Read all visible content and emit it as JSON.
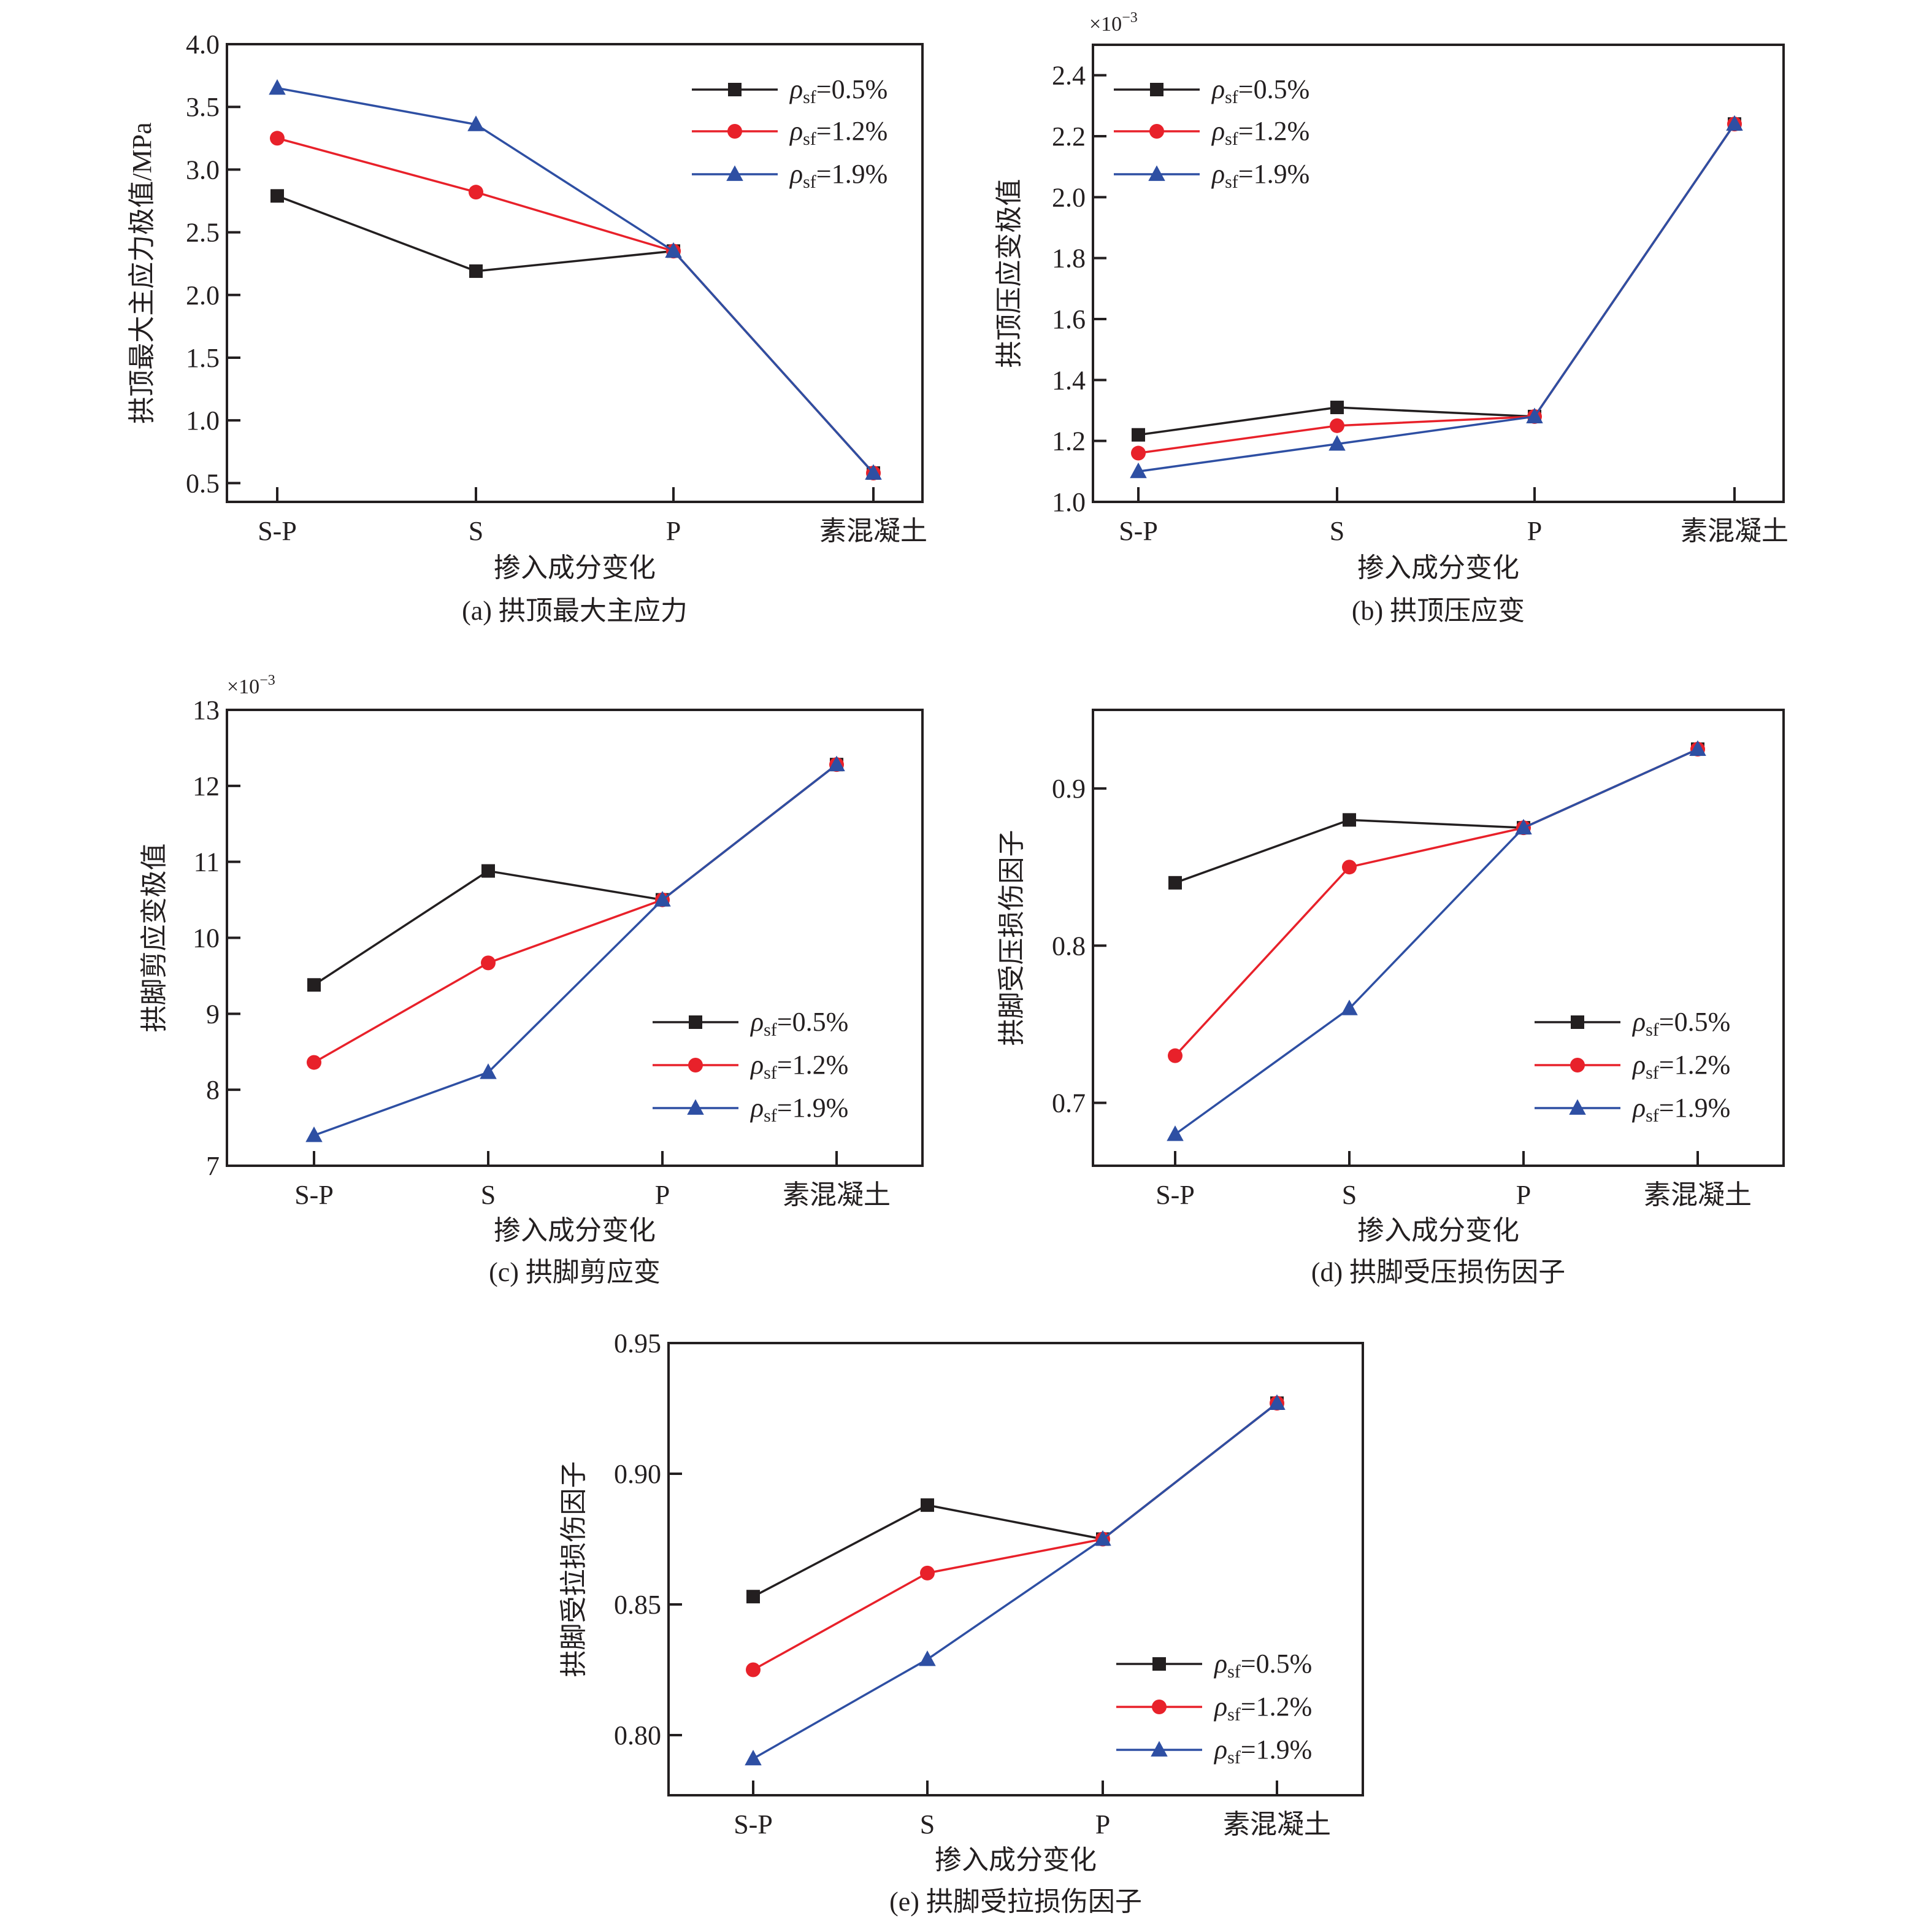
{
  "figure": {
    "series_style": [
      {
        "name": "ρsf=0.5%",
        "symbol": "ρ",
        "subscript": "sf",
        "suffix": "=0.5%",
        "color": "#231f20",
        "marker": "square"
      },
      {
        "name": "ρsf=1.2%",
        "symbol": "ρ",
        "subscript": "sf",
        "suffix": "=1.2%",
        "color": "#e8212a",
        "marker": "circle"
      },
      {
        "name": "ρsf=1.9%",
        "symbol": "ρ",
        "subscript": "sf",
        "suffix": "=1.9%",
        "color": "#2e4fa3",
        "marker": "triangle"
      }
    ]
  },
  "chart_data": [
    {
      "id": "a",
      "type": "line",
      "title": "(a) 拱顶最大主应力",
      "xlabel": "掺入成分变化",
      "ylabel": "拱顶最大主应力极值/MPa",
      "multiplier": "",
      "categories": [
        "S-P",
        "S",
        "P",
        "素混凝土"
      ],
      "ylim": [
        0.35,
        4.0
      ],
      "yticks": [
        0.5,
        1.0,
        1.5,
        2.0,
        2.5,
        3.0,
        3.5,
        4.0
      ],
      "ytick_labels": [
        "0.5",
        "1.0",
        "1.5",
        "2.0",
        "2.5",
        "3.0",
        "3.5",
        "4.0"
      ],
      "legend": "top-right",
      "grid": false,
      "series": [
        {
          "name": "ρsf=0.5%",
          "values": [
            2.79,
            2.19,
            2.35,
            0.58
          ]
        },
        {
          "name": "ρsf=1.2%",
          "values": [
            3.25,
            2.82,
            2.35,
            0.58
          ]
        },
        {
          "name": "ρsf=1.9%",
          "values": [
            3.65,
            3.36,
            2.35,
            0.58
          ]
        }
      ]
    },
    {
      "id": "b",
      "type": "line",
      "title": "(b) 拱顶压应变",
      "xlabel": "掺入成分变化",
      "ylabel": "拱顶压应变极值",
      "multiplier": "×10",
      "multiplier_exp": "−3",
      "categories": [
        "S-P",
        "S",
        "P",
        "素混凝土"
      ],
      "ylim": [
        1.0,
        2.5
      ],
      "yticks": [
        1.0,
        1.2,
        1.4,
        1.6,
        1.8,
        2.0,
        2.2,
        2.4
      ],
      "ytick_labels": [
        "1.0",
        "1.2",
        "1.4",
        "1.6",
        "1.8",
        "2.0",
        "2.2",
        "2.4"
      ],
      "legend": "top-left",
      "grid": false,
      "series": [
        {
          "name": "ρsf=0.5%",
          "values": [
            1.22,
            1.31,
            1.28,
            2.24
          ]
        },
        {
          "name": "ρsf=1.2%",
          "values": [
            1.16,
            1.25,
            1.28,
            2.24
          ]
        },
        {
          "name": "ρsf=1.9%",
          "values": [
            1.1,
            1.19,
            1.28,
            2.24
          ]
        }
      ]
    },
    {
      "id": "c",
      "type": "line",
      "title": "(c) 拱脚剪应变",
      "xlabel": "掺入成分变化",
      "ylabel": "拱脚剪应变极值",
      "multiplier": "×10",
      "multiplier_exp": "−3",
      "categories": [
        "S-P",
        "S",
        "P",
        "素混凝土"
      ],
      "ylim": [
        7,
        13
      ],
      "yticks": [
        7,
        8,
        9,
        10,
        11,
        12,
        13
      ],
      "ytick_labels": [
        "7",
        "8",
        "9",
        "10",
        "11",
        "12",
        "13"
      ],
      "legend": "bottom-right",
      "grid": false,
      "series": [
        {
          "name": "ρsf=0.5%",
          "values": [
            9.38,
            10.88,
            10.5,
            12.28
          ]
        },
        {
          "name": "ρsf=1.2%",
          "values": [
            8.36,
            9.67,
            10.5,
            12.28
          ]
        },
        {
          "name": "ρsf=1.9%",
          "values": [
            7.4,
            8.23,
            10.5,
            12.28
          ]
        }
      ]
    },
    {
      "id": "d",
      "type": "line",
      "title": "(d) 拱脚受压损伤因子",
      "xlabel": "掺入成分变化",
      "ylabel": "拱脚受压损伤因子",
      "multiplier": "",
      "categories": [
        "S-P",
        "S",
        "P",
        "素混凝土"
      ],
      "ylim": [
        0.66,
        0.95
      ],
      "yticks": [
        0.7,
        0.8,
        0.9
      ],
      "ytick_labels": [
        "0.7",
        "0.8",
        "0.9"
      ],
      "legend": "bottom-right",
      "grid": false,
      "series": [
        {
          "name": "ρsf=0.5%",
          "values": [
            0.84,
            0.88,
            0.875,
            0.925
          ]
        },
        {
          "name": "ρsf=1.2%",
          "values": [
            0.73,
            0.85,
            0.875,
            0.925
          ]
        },
        {
          "name": "ρsf=1.9%",
          "values": [
            0.68,
            0.76,
            0.875,
            0.925
          ]
        }
      ]
    },
    {
      "id": "e",
      "type": "line",
      "title": "(e) 拱脚受拉损伤因子",
      "xlabel": "掺入成分变化",
      "ylabel": "拱脚受拉损伤因子",
      "multiplier": "",
      "categories": [
        "S-P",
        "S",
        "P",
        "素混凝土"
      ],
      "ylim": [
        0.777,
        0.95
      ],
      "yticks": [
        0.8,
        0.85,
        0.9,
        0.95
      ],
      "ytick_labels": [
        "0.80",
        "0.85",
        "0.90",
        "0.95"
      ],
      "legend": "bottom-right",
      "grid": false,
      "series": [
        {
          "name": "ρsf=0.5%",
          "values": [
            0.853,
            0.888,
            0.875,
            0.927
          ]
        },
        {
          "name": "ρsf=1.2%",
          "values": [
            0.825,
            0.862,
            0.875,
            0.927
          ]
        },
        {
          "name": "ρsf=1.9%",
          "values": [
            0.791,
            0.829,
            0.875,
            0.927
          ]
        }
      ]
    }
  ]
}
